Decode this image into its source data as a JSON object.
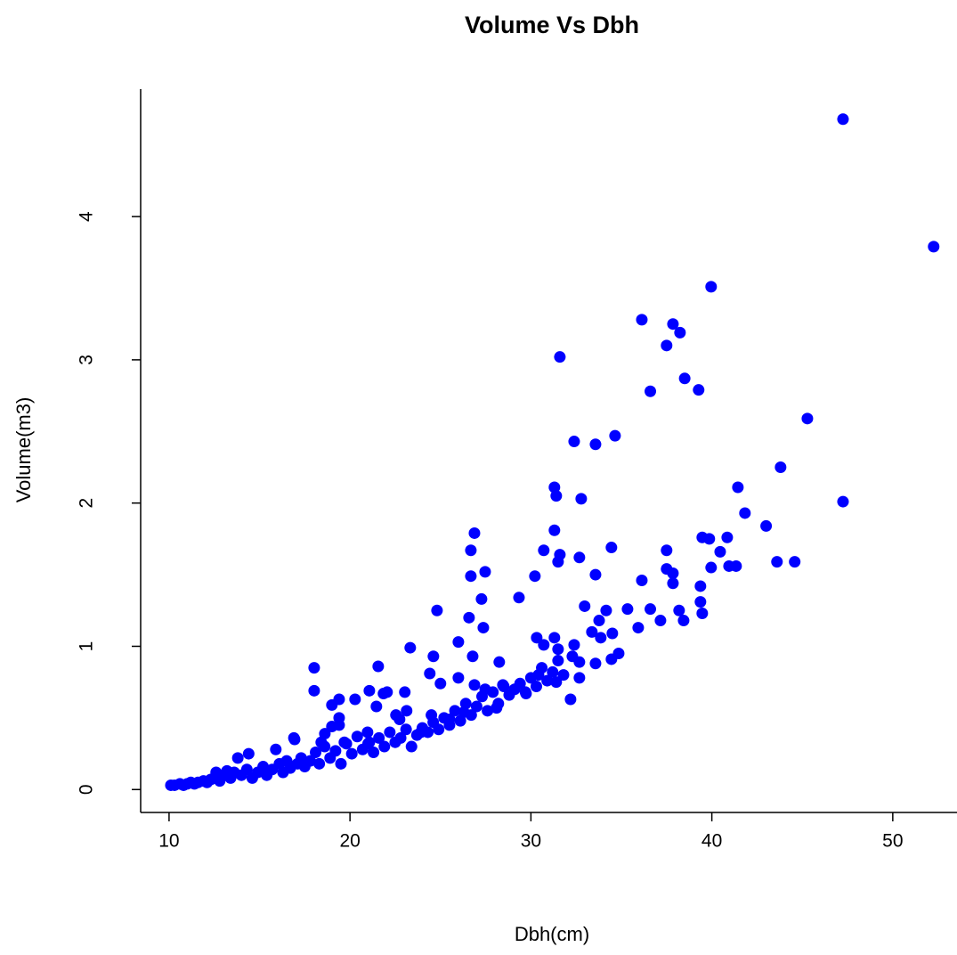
{
  "chart_data": {
    "type": "scatter",
    "title": "Volume Vs Dbh",
    "xlabel": "Dbh(cm)",
    "ylabel": "Volume(m3)",
    "color": "#0000ff",
    "xlim": [
      8.43,
      53.55
    ],
    "ylim": [
      -0.16,
      4.89
    ],
    "xticks": [
      10,
      20,
      30,
      40,
      50
    ],
    "yticks": [
      0,
      1,
      2,
      3,
      4
    ],
    "x": [
      47.25,
      52.26,
      39.96,
      36.13,
      37.85,
      38.24,
      37.5,
      31.6,
      38.5,
      36.6,
      39.27,
      45.28,
      34.65,
      32.39,
      33.57,
      43.8,
      31.3,
      41.44,
      31.4,
      32.78,
      47.25,
      41.83,
      43.0,
      31.3,
      26.88,
      39.47,
      39.86,
      40.85,
      34.45,
      37.5,
      26.68,
      30.71,
      40.46,
      31.6,
      32.68,
      31.5,
      43.6,
      44.58,
      40.95,
      41.34,
      39.96,
      37.5,
      27.47,
      37.85,
      33.57,
      26.68,
      30.22,
      36.13,
      37.85,
      39.37,
      29.34,
      27.27,
      39.37,
      32.97,
      36.6,
      35.34,
      34.16,
      38.19,
      24.81,
      39.47,
      26.58,
      37.16,
      38.44,
      33.77,
      35.93,
      27.37,
      33.37,
      34.5,
      33.86,
      30.32,
      31.3,
      25.99,
      30.71,
      32.39,
      23.33,
      31.5,
      32.29,
      34.85,
      34.45,
      26.78,
      24.61,
      32.68,
      28.25,
      33.57,
      21.56,
      18.02,
      24.41,
      30.42,
      25.99,
      32.68,
      31.4,
      25.0,
      26.88,
      28.45,
      27.47,
      21.07,
      18.02,
      22.05,
      23.03,
      21.85,
      29.73,
      19.4,
      20.28,
      32.19,
      19.0,
      21.46,
      28.1,
      23.13,
      26.29,
      22.54,
      24.5,
      19.4,
      22.74,
      25.5,
      19.4,
      19.0,
      20.97,
      23.92,
      18.61,
      18.41,
      16.94,
      19.69,
      21.07,
      10.1,
      10.3,
      10.6,
      10.8,
      11.0,
      11.2,
      11.4,
      11.6,
      11.9,
      12.1,
      12.3,
      12.5,
      12.6,
      12.8,
      13.0,
      13.2,
      13.4,
      13.6,
      13.8,
      14.0,
      14.3,
      14.4,
      14.6,
      14.9,
      15.2,
      15.4,
      15.7,
      15.9,
      16.1,
      16.3,
      16.5,
      16.7,
      16.9,
      17.1,
      17.3,
      17.5,
      17.8,
      18.1,
      18.3,
      18.6,
      18.9,
      19.2,
      19.5,
      19.8,
      20.1,
      20.4,
      20.7,
      21.0,
      21.3,
      21.6,
      21.9,
      22.2,
      22.5,
      22.8,
      23.1,
      23.4,
      23.7,
      24.0,
      24.3,
      24.6,
      24.9,
      25.2,
      25.5,
      25.8,
      26.1,
      26.4,
      26.7,
      27.0,
      27.3,
      27.6,
      27.9,
      28.2,
      28.5,
      28.8,
      29.1,
      29.4,
      29.7,
      30.0,
      30.3,
      30.6,
      30.9,
      31.2,
      31.5,
      31.8
    ],
    "values": [
      4.68,
      3.79,
      3.51,
      3.28,
      3.25,
      3.19,
      3.1,
      3.02,
      2.87,
      2.78,
      2.79,
      2.59,
      2.47,
      2.43,
      2.41,
      2.25,
      2.11,
      2.11,
      2.05,
      2.03,
      2.01,
      1.93,
      1.84,
      1.81,
      1.79,
      1.76,
      1.75,
      1.76,
      1.69,
      1.67,
      1.67,
      1.67,
      1.66,
      1.64,
      1.62,
      1.59,
      1.59,
      1.59,
      1.56,
      1.56,
      1.55,
      1.54,
      1.52,
      1.51,
      1.5,
      1.49,
      1.49,
      1.46,
      1.44,
      1.42,
      1.34,
      1.33,
      1.31,
      1.28,
      1.26,
      1.26,
      1.25,
      1.25,
      1.25,
      1.23,
      1.2,
      1.18,
      1.18,
      1.18,
      1.13,
      1.13,
      1.1,
      1.09,
      1.06,
      1.06,
      1.06,
      1.03,
      1.01,
      1.01,
      0.99,
      0.98,
      0.93,
      0.95,
      0.91,
      0.93,
      0.93,
      0.89,
      0.89,
      0.88,
      0.86,
      0.85,
      0.81,
      0.8,
      0.78,
      0.78,
      0.75,
      0.74,
      0.73,
      0.73,
      0.7,
      0.69,
      0.69,
      0.68,
      0.68,
      0.67,
      0.67,
      0.63,
      0.63,
      0.63,
      0.59,
      0.58,
      0.57,
      0.55,
      0.54,
      0.52,
      0.52,
      0.5,
      0.49,
      0.49,
      0.45,
      0.44,
      0.4,
      0.4,
      0.39,
      0.33,
      0.35,
      0.33,
      0.33,
      0.03,
      0.03,
      0.04,
      0.03,
      0.04,
      0.05,
      0.04,
      0.05,
      0.06,
      0.05,
      0.07,
      0.08,
      0.12,
      0.06,
      0.1,
      0.13,
      0.08,
      0.12,
      0.22,
      0.1,
      0.14,
      0.25,
      0.08,
      0.12,
      0.16,
      0.1,
      0.14,
      0.28,
      0.18,
      0.12,
      0.2,
      0.15,
      0.36,
      0.18,
      0.22,
      0.16,
      0.2,
      0.26,
      0.18,
      0.3,
      0.22,
      0.27,
      0.18,
      0.32,
      0.25,
      0.37,
      0.28,
      0.32,
      0.26,
      0.36,
      0.3,
      0.4,
      0.33,
      0.36,
      0.42,
      0.3,
      0.38,
      0.43,
      0.4,
      0.47,
      0.42,
      0.5,
      0.45,
      0.55,
      0.48,
      0.6,
      0.52,
      0.58,
      0.65,
      0.55,
      0.68,
      0.6,
      0.72,
      0.66,
      0.7,
      0.74,
      0.68,
      0.78,
      0.72,
      0.85,
      0.76,
      0.82,
      0.9,
      0.8
    ]
  }
}
